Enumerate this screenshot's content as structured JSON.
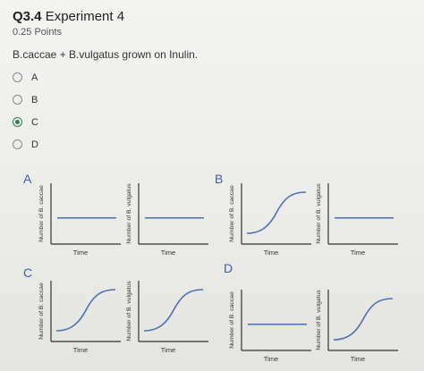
{
  "question": {
    "number": "Q3.4",
    "title": "Experiment 4",
    "points": "0.25 Points",
    "prompt": "B.caccae + B.vulgatus grown on Inulin."
  },
  "options": [
    {
      "label": "A",
      "selected": false
    },
    {
      "label": "B",
      "selected": false
    },
    {
      "label": "C",
      "selected": true
    },
    {
      "label": "D",
      "selected": false
    }
  ],
  "figure": {
    "panel_labels": [
      "A",
      "B",
      "C",
      "D"
    ],
    "axis": {
      "x": "Time",
      "y_caccae": "Number of B. caccae",
      "y_vulgatus": "Number of B. vulgatus"
    },
    "panels": [
      {
        "label": "A",
        "plots": [
          {
            "ylabel": "Number of B. caccae",
            "shape": "flat"
          },
          {
            "ylabel": "Number of B. vulgatus",
            "shape": "flat"
          }
        ]
      },
      {
        "label": "B",
        "plots": [
          {
            "ylabel": "Number of B. caccae",
            "shape": "sigmoid"
          },
          {
            "ylabel": "Number of B. vulgatus",
            "shape": "flat"
          }
        ]
      },
      {
        "label": "C",
        "plots": [
          {
            "ylabel": "Number of B. caccae",
            "shape": "sigmoid"
          },
          {
            "ylabel": "Number of B. vulgatus",
            "shape": "sigmoid"
          }
        ]
      },
      {
        "label": "D",
        "plots": [
          {
            "ylabel": "Number of B. caccae",
            "shape": "flat"
          },
          {
            "ylabel": "Number of B. vulgatus",
            "shape": "sigmoid"
          }
        ]
      }
    ],
    "colors": {
      "curve": "#4a6fb3",
      "label_accent": "#3b5ea8",
      "axis": "#333333"
    }
  }
}
